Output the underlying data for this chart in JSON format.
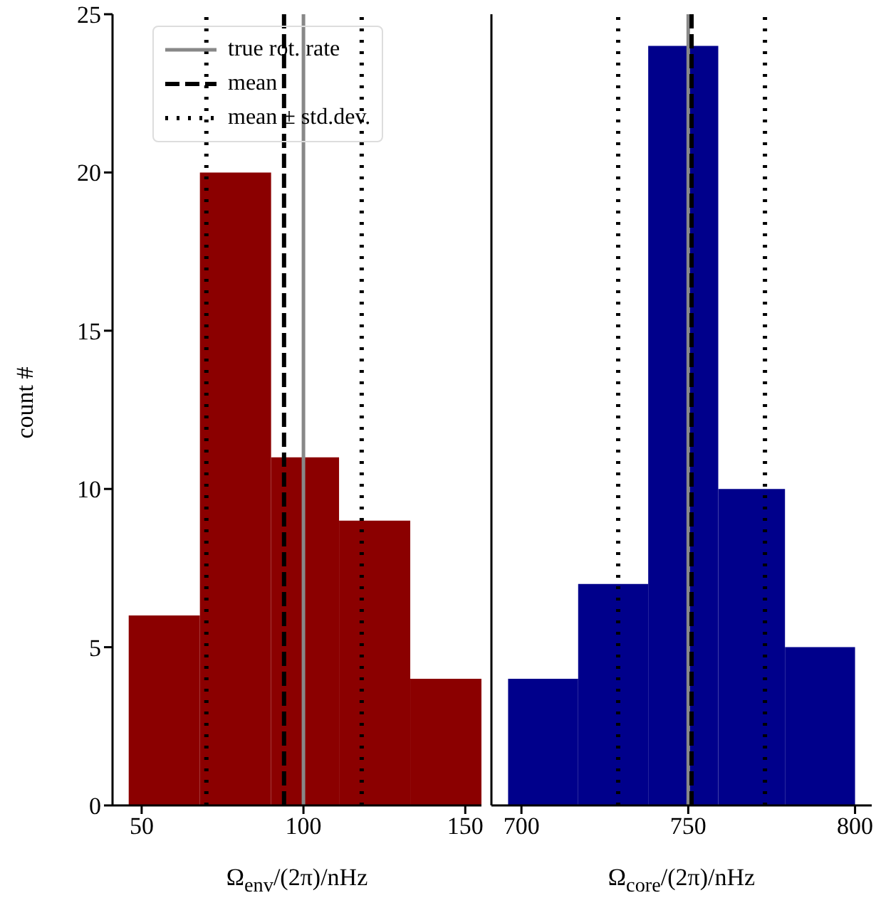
{
  "chart_data": [
    {
      "type": "histogram",
      "xlabel": "Ω$_{env}$/(2π)/nHz",
      "ylabel": "count #",
      "bins": [
        46,
        68,
        90,
        111,
        133,
        155
      ],
      "values": [
        6,
        20,
        11,
        9,
        4
      ],
      "color": "#8b0000",
      "xlim": [
        41,
        155
      ],
      "xticks": [
        50,
        100,
        150
      ],
      "ylim": [
        0,
        25
      ],
      "yticks": [
        0,
        5,
        10,
        15,
        20,
        25
      ],
      "grid": false,
      "legend": "top left",
      "ref_lines": [
        {
          "axis": "x",
          "value": 100,
          "label": "true rot. rate",
          "color": "#888888",
          "line_style": "solid"
        },
        {
          "axis": "x",
          "value": 94,
          "label": "mean",
          "color": "#000000",
          "line_style": "dashed"
        },
        {
          "axis": "x",
          "value": 70,
          "label": "mean ± std.dev.",
          "color": "#000000",
          "line_style": "dotted"
        },
        {
          "axis": "x",
          "value": 118,
          "label": null,
          "color": "#000000",
          "line_style": "dotted"
        }
      ]
    },
    {
      "type": "histogram",
      "xlabel": "Ω$_{core}$/(2π)/nHz",
      "bins": [
        696,
        717,
        738,
        759,
        779,
        800
      ],
      "values": [
        4,
        7,
        24,
        10,
        5
      ],
      "color": "#00008b",
      "xlim": [
        691,
        805
      ],
      "xticks": [
        700,
        750,
        800
      ],
      "ylim": [
        0,
        25
      ],
      "yticks": [
        0,
        5,
        10,
        15,
        20,
        25
      ],
      "grid": false,
      "tick_labels": "x",
      "ref_lines": [
        {
          "axis": "x",
          "value": 750,
          "label": null,
          "color": "#888888",
          "line_style": "solid"
        },
        {
          "axis": "x",
          "value": 751,
          "label": null,
          "color": "#000000",
          "line_style": "dashed"
        },
        {
          "axis": "x",
          "value": 729,
          "label": null,
          "color": "#000000",
          "line_style": "dotted"
        },
        {
          "axis": "x",
          "value": 773,
          "label": null,
          "color": "#000000",
          "line_style": "dotted"
        }
      ]
    }
  ]
}
